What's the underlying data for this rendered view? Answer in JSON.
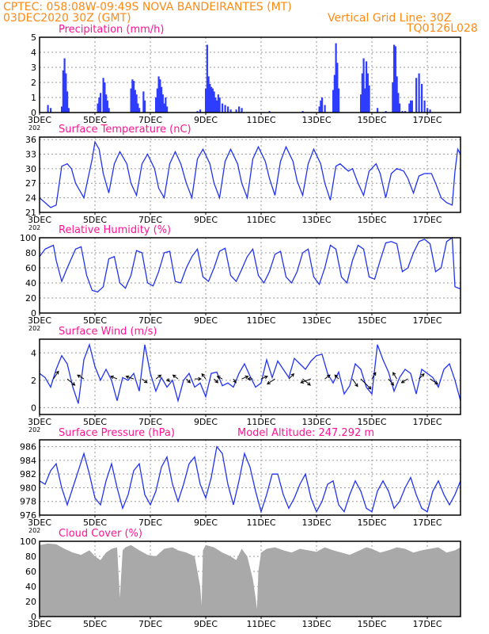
{
  "header": {
    "line1": "CPTEC:    058:08W-09:49S   NOVA BANDEIRANTES (MT)",
    "line2_left": "03DEC2020 30Z (GMT)",
    "line2_right": "Vertical Grid Line: 30Z",
    "line3_right": "TQ0126L028"
  },
  "x_dates": [
    "3DEC",
    "5DEC",
    "7DEC",
    "9DEC",
    "11DEC",
    "13DEC",
    "15DEC",
    "17DEC"
  ],
  "x_sub_label": "202",
  "chart_data": [
    {
      "id": "precip",
      "type": "bar",
      "title": "Precipitation (mm/h)",
      "ylim": [
        0,
        5
      ],
      "yticks": [
        0,
        1,
        2,
        3,
        4,
        5
      ],
      "xlim_days": [
        3,
        18.2
      ],
      "x_day": [
        3.3,
        3.4,
        3.8,
        3.85,
        3.9,
        3.95,
        4.0,
        4.05,
        5.1,
        5.15,
        5.2,
        5.3,
        5.35,
        5.4,
        5.45,
        5.5,
        6.3,
        6.35,
        6.4,
        6.45,
        6.5,
        6.55,
        6.6,
        6.75,
        6.8,
        7.2,
        7.25,
        7.3,
        7.35,
        7.4,
        7.45,
        7.5,
        7.55,
        7.6,
        8.7,
        8.8,
        9.0,
        9.05,
        9.1,
        9.15,
        9.2,
        9.25,
        9.3,
        9.35,
        9.4,
        9.45,
        9.5,
        9.6,
        9.7,
        9.8,
        9.9,
        10.1,
        10.2,
        10.3,
        11.3,
        12.5,
        13.1,
        13.15,
        13.2,
        13.3,
        13.6,
        13.65,
        13.7,
        13.75,
        13.8,
        14.6,
        14.65,
        14.7,
        14.75,
        14.8,
        14.85,
        14.9,
        15.2,
        15.5,
        15.75,
        15.8,
        15.85,
        15.9,
        15.95,
        16.0,
        16.1,
        16.2,
        16.35,
        16.4,
        16.45,
        16.6,
        16.7,
        16.8,
        16.9,
        17.0,
        17.1
      ],
      "values": [
        0.5,
        0.3,
        0.4,
        2.8,
        3.6,
        2.6,
        1.4,
        0.3,
        0.6,
        1.0,
        1.3,
        2.3,
        2.0,
        1.2,
        0.8,
        0.3,
        1.6,
        2.2,
        2.1,
        1.5,
        1.2,
        0.6,
        0.3,
        1.4,
        0.8,
        1.0,
        1.6,
        2.4,
        2.2,
        1.7,
        1.2,
        0.6,
        1.0,
        0.4,
        0.1,
        0.2,
        1.6,
        4.5,
        2.4,
        1.9,
        1.7,
        1.6,
        1.4,
        1.0,
        0.8,
        1.2,
        1.0,
        0.6,
        0.5,
        0.4,
        0.2,
        0.2,
        0.4,
        0.3,
        0.1,
        0.1,
        0.4,
        0.8,
        1.0,
        0.5,
        1.5,
        2.5,
        4.6,
        3.3,
        1.6,
        1.2,
        2.6,
        3.6,
        1.6,
        3.4,
        2.6,
        1.8,
        0.3,
        0.1,
        2.0,
        4.5,
        4.4,
        2.4,
        1.3,
        0.6,
        0.1,
        0.1,
        0.6,
        0.8,
        0.8,
        2.3,
        2.6,
        1.9,
        0.8,
        0.3,
        0.2
      ]
    },
    {
      "id": "temp",
      "type": "line",
      "title": "Surface Temperature (nC)",
      "ylim": [
        21,
        36.5
      ],
      "yticks": [
        21,
        24,
        27,
        30,
        33,
        36
      ],
      "xlim_days": [
        3,
        18.2
      ],
      "x_day": [
        3.0,
        3.2,
        3.4,
        3.6,
        3.8,
        4.0,
        4.15,
        4.3,
        4.6,
        4.9,
        5.0,
        5.15,
        5.3,
        5.5,
        5.7,
        5.9,
        6.15,
        6.3,
        6.5,
        6.7,
        6.9,
        7.15,
        7.3,
        7.5,
        7.7,
        7.9,
        8.1,
        8.3,
        8.5,
        8.7,
        8.9,
        9.15,
        9.3,
        9.5,
        9.7,
        9.9,
        10.15,
        10.3,
        10.5,
        10.7,
        10.9,
        11.15,
        11.3,
        11.5,
        11.7,
        11.9,
        12.15,
        12.3,
        12.5,
        12.7,
        12.9,
        13.15,
        13.3,
        13.5,
        13.7,
        13.85,
        14.15,
        14.3,
        14.5,
        14.7,
        14.9,
        15.15,
        15.3,
        15.5,
        15.7,
        15.9,
        16.15,
        16.3,
        16.5,
        16.7,
        16.9,
        17.15,
        17.3,
        17.5,
        17.7,
        17.9,
        18.0,
        18.1,
        18.2
      ],
      "values": [
        24.0,
        23.0,
        22.0,
        22.5,
        30.5,
        31.0,
        30.0,
        27.0,
        24.0,
        32.0,
        35.5,
        34.0,
        29.0,
        25.0,
        31.0,
        33.5,
        31.0,
        27.0,
        24.5,
        31.0,
        33.0,
        30.0,
        26.0,
        24.0,
        31.0,
        33.5,
        31.0,
        27.0,
        24.0,
        32.0,
        34.0,
        31.0,
        27.0,
        24.0,
        31.5,
        34.0,
        31.0,
        27.0,
        24.0,
        32.0,
        34.5,
        31.5,
        28.0,
        24.5,
        31.5,
        34.5,
        31.5,
        27.5,
        24.5,
        31.0,
        34.0,
        31.0,
        27.0,
        23.5,
        30.5,
        31.0,
        29.5,
        30.0,
        27.0,
        24.5,
        29.5,
        31.0,
        29.0,
        24.0,
        29.0,
        30.0,
        29.5,
        28.0,
        25.0,
        28.5,
        29.0,
        29.0,
        27.0,
        24.0,
        23.0,
        22.5,
        29.5,
        34.0,
        33.0
      ]
    },
    {
      "id": "rh",
      "type": "line",
      "title": "Relative Humidity (%)",
      "ylim": [
        0,
        100
      ],
      "yticks": [
        0,
        20,
        40,
        60,
        80,
        100
      ],
      "xlim_days": [
        3,
        18.2
      ],
      "x_day": [
        3.0,
        3.2,
        3.5,
        3.6,
        3.8,
        4.0,
        4.3,
        4.5,
        4.7,
        4.9,
        5.1,
        5.3,
        5.5,
        5.7,
        5.9,
        6.1,
        6.3,
        6.5,
        6.7,
        6.9,
        7.1,
        7.3,
        7.5,
        7.7,
        7.9,
        8.1,
        8.3,
        8.5,
        8.7,
        8.9,
        9.1,
        9.3,
        9.5,
        9.7,
        9.9,
        10.1,
        10.3,
        10.5,
        10.7,
        10.9,
        11.1,
        11.3,
        11.5,
        11.7,
        11.9,
        12.1,
        12.3,
        12.5,
        12.7,
        12.9,
        13.1,
        13.3,
        13.5,
        13.7,
        13.9,
        14.1,
        14.3,
        14.5,
        14.7,
        14.9,
        15.1,
        15.3,
        15.5,
        15.7,
        15.9,
        16.1,
        16.3,
        16.5,
        16.7,
        16.9,
        17.1,
        17.3,
        17.5,
        17.7,
        17.9,
        18.0,
        18.2
      ],
      "values": [
        75,
        85,
        90,
        70,
        42,
        60,
        85,
        88,
        50,
        30,
        28,
        35,
        72,
        75,
        40,
        33,
        50,
        83,
        80,
        40,
        36,
        55,
        80,
        82,
        42,
        40,
        60,
        75,
        85,
        48,
        42,
        60,
        82,
        86,
        50,
        42,
        58,
        75,
        85,
        50,
        40,
        55,
        78,
        82,
        48,
        40,
        55,
        80,
        85,
        48,
        38,
        60,
        90,
        85,
        48,
        40,
        70,
        90,
        85,
        48,
        45,
        70,
        93,
        95,
        92,
        55,
        60,
        80,
        95,
        98,
        92,
        55,
        60,
        95,
        100,
        35,
        32
      ]
    },
    {
      "id": "wind",
      "type": "line",
      "title": "Surface Wind (m/s)",
      "ylim": [
        -0.5,
        5
      ],
      "yticks": [
        0,
        2,
        4
      ],
      "xlim_days": [
        3,
        18.2
      ],
      "x_day": [
        3.0,
        3.2,
        3.4,
        3.6,
        3.8,
        4.0,
        4.2,
        4.4,
        4.6,
        4.8,
        5.0,
        5.2,
        5.4,
        5.6,
        5.8,
        6.0,
        6.2,
        6.4,
        6.6,
        6.8,
        7.0,
        7.2,
        7.4,
        7.6,
        7.8,
        8.0,
        8.2,
        8.4,
        8.6,
        8.8,
        9.0,
        9.2,
        9.4,
        9.6,
        9.8,
        10.0,
        10.2,
        10.4,
        10.6,
        10.8,
        11.0,
        11.2,
        11.4,
        11.6,
        11.8,
        12.0,
        12.2,
        12.4,
        12.6,
        12.8,
        13.0,
        13.2,
        13.4,
        13.6,
        13.8,
        14.0,
        14.2,
        14.4,
        14.6,
        14.8,
        15.0,
        15.2,
        15.4,
        15.6,
        15.8,
        16.0,
        16.2,
        16.4,
        16.6,
        16.8,
        17.0,
        17.2,
        17.4,
        17.6,
        17.8,
        18.0,
        18.2
      ],
      "values": [
        2.5,
        2.2,
        1.5,
        2.8,
        3.8,
        3.2,
        1.5,
        0.3,
        3.5,
        4.6,
        3.0,
        2.0,
        2.8,
        2.0,
        0.5,
        2.2,
        2.0,
        2.5,
        1.2,
        4.6,
        2.5,
        1.2,
        2.2,
        1.5,
        2.0,
        0.5,
        2.0,
        2.5,
        1.5,
        1.8,
        0.8,
        2.5,
        2.6,
        1.6,
        1.8,
        1.5,
        2.5,
        3.2,
        2.3,
        1.5,
        1.8,
        3.5,
        2.2,
        3.4,
        2.8,
        2.2,
        3.6,
        3.2,
        2.8,
        3.4,
        3.8,
        3.9,
        2.5,
        1.8,
        2.6,
        1.0,
        1.6,
        3.2,
        2.8,
        1.5,
        1.0,
        4.6,
        3.5,
        2.6,
        1.2,
        2.2,
        2.8,
        2.5,
        1.0,
        2.8,
        2.5,
        2.2,
        1.5,
        2.8,
        3.2,
        2.0,
        0.5
      ],
      "arrows_day": [
        3.5,
        4.0,
        4.6,
        5.8,
        6.4,
        6.7,
        7.2,
        7.6,
        8.0,
        8.3,
        8.6,
        9.0,
        9.3,
        9.6,
        10.0,
        10.3,
        10.7,
        11.0,
        11.5,
        12.0,
        12.5,
        12.8,
        13.3,
        13.8,
        14.3,
        14.6,
        15.0,
        15.6,
        15.9,
        16.3,
        16.7,
        17.1
      ],
      "arrows_u": [
        0.4,
        0.6,
        -0.5,
        -0.5,
        -0.6,
        0.4,
        0.4,
        0.2,
        -0.4,
        0.3,
        0.5,
        -0.3,
        0.3,
        -0.4,
        0.2,
        0.5,
        -0.4,
        0.5,
        -0.6,
        0.4,
        0.6,
        -0.8,
        0.4,
        -0.3,
        0.4,
        0.8,
        0.3,
        0.4,
        -0.3,
        -0.5,
        0.4,
        0.6
      ],
      "arrows_v": [
        0.6,
        -0.5,
        0.3,
        0.2,
        0.2,
        -0.3,
        0.3,
        -0.2,
        0.3,
        -0.3,
        0.0,
        0.4,
        -0.3,
        0.2,
        -0.3,
        0.2,
        0.0,
        0.2,
        -0.4,
        0.4,
        -0.5,
        -0.3,
        0.3,
        0.3,
        -0.6,
        -0.8,
        0.5,
        -0.5,
        0.5,
        -0.3,
        0.4,
        -0.4
      ]
    },
    {
      "id": "press",
      "type": "line",
      "title": "Surface Pressure (hPa)",
      "title_right": "Model Altitude: 247.292 m",
      "ylim": [
        976,
        987
      ],
      "yticks": [
        976,
        978,
        980,
        982,
        984,
        986
      ],
      "xlim_days": [
        3,
        18.2
      ],
      "x_day": [
        3.0,
        3.2,
        3.4,
        3.6,
        3.8,
        4.0,
        4.2,
        4.4,
        4.6,
        4.8,
        5.0,
        5.2,
        5.4,
        5.6,
        5.8,
        6.0,
        6.2,
        6.4,
        6.6,
        6.8,
        7.0,
        7.2,
        7.4,
        7.6,
        7.8,
        8.0,
        8.2,
        8.4,
        8.6,
        8.8,
        9.0,
        9.2,
        9.4,
        9.6,
        9.8,
        10.0,
        10.2,
        10.4,
        10.6,
        10.8,
        11.0,
        11.2,
        11.4,
        11.6,
        11.8,
        12.0,
        12.2,
        12.4,
        12.6,
        12.8,
        13.0,
        13.2,
        13.4,
        13.6,
        13.8,
        14.0,
        14.2,
        14.4,
        14.6,
        14.8,
        15.0,
        15.2,
        15.4,
        15.6,
        15.8,
        16.0,
        16.2,
        16.4,
        16.6,
        16.8,
        17.0,
        17.2,
        17.4,
        17.6,
        17.8,
        18.0,
        18.2
      ],
      "values": [
        981,
        980.5,
        982.5,
        983.5,
        980,
        977.5,
        980,
        982.5,
        985,
        982,
        978.5,
        977.5,
        981,
        983.5,
        980,
        977,
        979,
        982.5,
        983.5,
        979,
        977.5,
        979.5,
        983,
        984.5,
        980.5,
        978,
        980.5,
        983.5,
        984.5,
        980.5,
        978.5,
        981.5,
        986,
        985,
        980.5,
        977.5,
        981,
        985,
        983,
        979.5,
        976.5,
        979,
        982,
        982,
        979,
        977,
        978.5,
        980.5,
        982,
        978.5,
        976.5,
        978,
        980.5,
        981,
        977.5,
        976.5,
        979,
        981,
        979.5,
        977,
        976.5,
        979.5,
        981,
        979.5,
        977,
        978,
        980,
        981.5,
        979,
        977,
        976.5,
        979.5,
        981,
        979,
        977.5,
        979,
        981
      ]
    },
    {
      "id": "cloud",
      "type": "area",
      "title": "Cloud Cover (%)",
      "ylim": [
        0,
        100
      ],
      "yticks": [
        0,
        20,
        40,
        60,
        80,
        100
      ],
      "xlim_days": [
        3,
        18.2
      ],
      "x_day": [
        3.0,
        3.3,
        3.6,
        3.9,
        4.2,
        4.5,
        4.8,
        5.0,
        5.2,
        5.4,
        5.6,
        5.8,
        5.9,
        6.0,
        6.1,
        6.3,
        6.6,
        6.9,
        7.2,
        7.5,
        7.8,
        8.0,
        8.3,
        8.6,
        8.8,
        8.85,
        8.9,
        9.0,
        9.3,
        9.6,
        9.9,
        10.1,
        10.3,
        10.5,
        10.7,
        10.8,
        10.85,
        10.9,
        11.0,
        11.2,
        11.5,
        11.8,
        12.1,
        12.4,
        12.7,
        13.0,
        13.3,
        13.6,
        13.9,
        14.2,
        14.5,
        14.8,
        15.0,
        15.3,
        15.6,
        15.9,
        16.2,
        16.5,
        16.8,
        17.1,
        17.4,
        17.7,
        18.0,
        18.2
      ],
      "values": [
        95,
        97,
        96,
        90,
        85,
        82,
        88,
        80,
        75,
        85,
        90,
        92,
        25,
        88,
        92,
        95,
        88,
        82,
        80,
        90,
        92,
        88,
        85,
        80,
        40,
        15,
        88,
        95,
        92,
        85,
        80,
        75,
        90,
        80,
        50,
        25,
        10,
        60,
        85,
        90,
        92,
        88,
        85,
        90,
        88,
        86,
        92,
        88,
        85,
        82,
        87,
        92,
        90,
        85,
        88,
        92,
        90,
        85,
        88,
        90,
        92,
        85,
        88,
        92
      ]
    }
  ]
}
